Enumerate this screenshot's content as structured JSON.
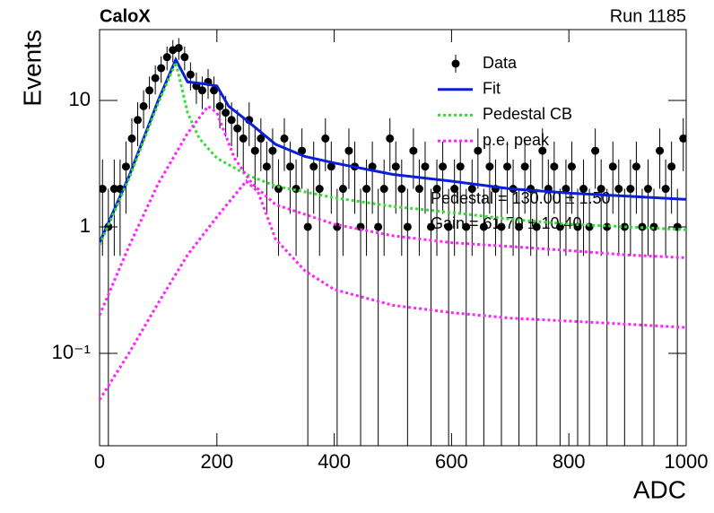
{
  "chart_data": {
    "type": "scatter",
    "title": "CaloX",
    "subtitle": "Run 1185",
    "x_label": "ADC",
    "y_label": "Events",
    "log_y": true,
    "legend": "upper right",
    "annotations": [
      "Pedestal = 130.00 ± 1.50",
      "Gain = 61.70 ± 10.40"
    ],
    "xlim": [
      0,
      1000
    ],
    "xticks": [
      0,
      200,
      400,
      600,
      800,
      1000
    ],
    "ylim": [
      0.0186,
      36.3
    ],
    "yticks": [
      {
        "value": 0.1,
        "label": "10⁻¹"
      },
      1,
      10
    ],
    "series": [
      {
        "name": "Data",
        "mode": "markers",
        "color": "#000000",
        "x": [
          5,
          15,
          25,
          35,
          45,
          55,
          65,
          75,
          85,
          95,
          105,
          115,
          125,
          135,
          145,
          155,
          165,
          175,
          185,
          195,
          205,
          215,
          225,
          235,
          245,
          255,
          265,
          275,
          285,
          295,
          305,
          315,
          325,
          335,
          345,
          355,
          365,
          375,
          385,
          395,
          405,
          415,
          425,
          435,
          445,
          455,
          465,
          475,
          485,
          495,
          505,
          515,
          525,
          535,
          545,
          555,
          565,
          575,
          585,
          595,
          605,
          615,
          625,
          635,
          645,
          655,
          665,
          675,
          685,
          695,
          705,
          715,
          725,
          735,
          745,
          755,
          765,
          775,
          785,
          795,
          805,
          815,
          825,
          835,
          845,
          855,
          865,
          875,
          885,
          895,
          905,
          915,
          925,
          935,
          945,
          955,
          965,
          975,
          985,
          995
        ],
        "values": [
          2,
          1,
          2,
          2,
          3,
          5,
          7,
          9,
          12,
          15,
          18,
          22,
          25,
          26,
          22,
          16,
          13,
          12,
          14,
          12,
          9,
          8,
          7,
          6,
          5,
          7,
          4,
          5,
          3,
          4,
          2,
          5,
          3,
          2,
          4,
          1,
          3,
          2,
          5,
          3,
          1,
          2,
          4,
          3,
          1,
          2,
          3,
          1,
          2,
          5,
          3,
          2,
          1,
          4,
          2,
          3,
          1,
          2,
          3,
          1,
          2,
          3,
          1,
          2,
          4,
          1,
          3,
          2,
          1,
          3,
          2,
          1,
          3,
          2,
          1,
          4,
          2,
          3,
          1,
          2,
          3,
          1,
          2,
          1,
          4,
          2,
          1,
          3,
          2,
          1,
          2,
          3,
          1,
          2,
          1,
          4,
          2,
          3,
          1,
          5
        ],
        "errors": [
          1.41,
          1,
          1.41,
          1.41,
          1.73,
          2.24,
          2.65,
          3,
          3.46,
          3.87,
          4.24,
          4.69,
          5,
          5.1,
          4.69,
          4,
          3.61,
          3.46,
          3.74,
          3.46,
          3,
          2.83,
          2.65,
          2.45,
          2.24,
          2.65,
          2,
          2.24,
          1.73,
          2,
          1.41,
          2.24,
          1.73,
          1.41,
          2,
          1,
          1.73,
          1.41,
          2.24,
          1.73,
          1,
          1.41,
          2,
          1.73,
          1,
          1.41,
          1.73,
          1,
          1.41,
          2.24,
          1.73,
          1.41,
          1,
          2,
          1.41,
          1.73,
          1,
          1.41,
          1.73,
          1,
          1.41,
          1.73,
          1,
          1.41,
          2,
          1,
          1.73,
          1.41,
          1,
          1.73,
          1.41,
          1,
          1.73,
          1.41,
          1,
          2,
          1.41,
          1.73,
          1,
          1.41,
          1.73,
          1,
          1.41,
          1,
          2,
          1.41,
          1,
          1.73,
          1.41,
          1,
          1.41,
          1.73,
          1,
          1.41,
          1,
          2,
          1.41,
          1.73,
          1,
          2.24
        ]
      },
      {
        "name": "Fit",
        "mode": "line",
        "dash": "solid",
        "color": "#0a1fd6",
        "x": [
          0,
          50,
          100,
          130,
          150,
          180,
          200,
          220,
          250,
          300,
          350,
          400,
          500,
          600,
          700,
          800,
          900,
          1000
        ],
        "values": [
          0.75,
          2.5,
          10,
          21,
          14,
          13.5,
          13,
          9,
          7,
          4.5,
          3.6,
          3.2,
          2.6,
          2.3,
          2.0,
          1.85,
          1.75,
          1.65
        ]
      },
      {
        "name": "Pedestal CB",
        "mode": "line",
        "dash": "dotted",
        "color": "#33dd33",
        "x": [
          0,
          50,
          100,
          130,
          150,
          170,
          200,
          250,
          300,
          400,
          500,
          600,
          700,
          800,
          900,
          1000
        ],
        "values": [
          0.72,
          2.4,
          9.5,
          20,
          8,
          5,
          3.5,
          2.6,
          2.1,
          1.7,
          1.45,
          1.3,
          1.15,
          1.05,
          1.0,
          0.95
        ]
      },
      {
        "name": "p.e. peak",
        "mode": "line",
        "dash": "dotted",
        "color": "#ff22ff",
        "x": [
          0,
          50,
          100,
          150,
          185,
          200,
          230,
          260,
          300,
          400,
          500,
          600,
          700,
          800,
          900,
          1000
        ],
        "values": [
          0.2,
          0.7,
          2.2,
          5.5,
          9,
          8,
          3.5,
          2.2,
          1.5,
          1.05,
          0.85,
          0.75,
          0.7,
          0.65,
          0.6,
          0.57
        ]
      },
      {
        "mode": "line",
        "dash": "dotted",
        "color": "#ff22ff",
        "x": [
          0,
          50,
          100,
          150,
          200,
          250,
          270,
          300,
          350,
          400,
          500,
          600,
          700,
          800,
          900,
          1000
        ],
        "values": [
          0.043,
          0.1,
          0.25,
          0.6,
          1.2,
          2.3,
          1.9,
          0.8,
          0.45,
          0.32,
          0.24,
          0.21,
          0.19,
          0.18,
          0.17,
          0.16
        ]
      }
    ]
  }
}
